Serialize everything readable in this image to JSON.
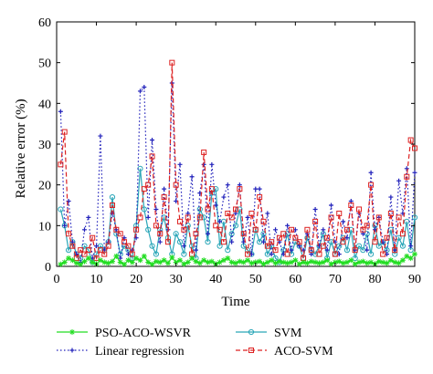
{
  "chart_data": {
    "type": "line",
    "title": "",
    "xlabel": "Time",
    "ylabel": "Relative error (%)",
    "xlim": [
      0,
      90
    ],
    "ylim": [
      0,
      60
    ],
    "xticks": [
      0,
      10,
      20,
      30,
      40,
      50,
      60,
      70,
      80,
      90
    ],
    "yticks": [
      0,
      10,
      20,
      30,
      40,
      50,
      60
    ],
    "grid": false,
    "legend_position": "bottom",
    "x": [
      1,
      2,
      3,
      4,
      5,
      6,
      7,
      8,
      9,
      10,
      11,
      12,
      13,
      14,
      15,
      16,
      17,
      18,
      19,
      20,
      21,
      22,
      23,
      24,
      25,
      26,
      27,
      28,
      29,
      30,
      31,
      32,
      33,
      34,
      35,
      36,
      37,
      38,
      39,
      40,
      41,
      42,
      43,
      44,
      45,
      46,
      47,
      48,
      49,
      50,
      51,
      52,
      53,
      54,
      55,
      56,
      57,
      58,
      59,
      60,
      61,
      62,
      63,
      64,
      65,
      66,
      67,
      68,
      69,
      70,
      71,
      72,
      73,
      74,
      75,
      76,
      77,
      78,
      79,
      80,
      81,
      82,
      83,
      84,
      85,
      86,
      87,
      88,
      89,
      90
    ],
    "series": [
      {
        "name": "PSO-ACO-WSVR",
        "color": "#22dd22",
        "values": [
          0.5,
          1,
          2,
          1.5,
          0.8,
          0.5,
          1.2,
          2,
          1,
          0.6,
          1.5,
          1,
          0.8,
          1.2,
          2.5,
          1,
          0.5,
          1.5,
          1,
          2,
          1.5,
          2.5,
          1,
          0.5,
          1.2,
          1,
          1.5,
          0.8,
          2.2,
          1,
          1.5,
          0.6,
          1,
          2,
          1.2,
          0.8,
          1.5,
          1,
          1.2,
          0.6,
          1,
          1.5,
          2,
          1,
          0.8,
          1.2,
          1,
          1.5,
          0.8,
          1,
          1.2,
          0.6,
          1,
          1.5,
          0.8,
          1.2,
          1,
          0.8,
          1,
          1.5,
          0.6,
          1,
          0.8,
          1.2,
          1,
          0.8,
          1,
          1.5,
          0.6,
          1,
          1.2,
          0.8,
          1,
          1.5,
          0.6,
          1,
          1.2,
          0.8,
          1,
          0.6,
          1.2,
          1,
          0.8,
          1.5,
          1,
          0.8,
          1.5,
          2.5,
          2,
          3
        ]
      },
      {
        "name": "SVM",
        "color": "#2aa6b8",
        "values": [
          14,
          10,
          4,
          6,
          3,
          2,
          5,
          4,
          1,
          3,
          5,
          4,
          6,
          17,
          8,
          3,
          5,
          4,
          2,
          10,
          24,
          14,
          9,
          5,
          3,
          9,
          12,
          7,
          3,
          8,
          6,
          3,
          10,
          5,
          2,
          14,
          12,
          6,
          18,
          19,
          5,
          11,
          4,
          8,
          10,
          14,
          5,
          4,
          3,
          9,
          6,
          8,
          3,
          5,
          2,
          1,
          4,
          8,
          3,
          6,
          5,
          2,
          7,
          4,
          3,
          5,
          8,
          2,
          6,
          3,
          5,
          7,
          4,
          9,
          2,
          5,
          4,
          8,
          3,
          10,
          5,
          6,
          4,
          9,
          3,
          7,
          5,
          11,
          4,
          12
        ]
      },
      {
        "name": "Linear regression",
        "color": "#2222bb",
        "values": [
          38,
          10,
          16,
          6,
          3,
          1,
          9,
          12,
          2,
          5,
          32,
          4,
          6,
          13,
          9,
          2,
          7,
          3,
          4,
          7,
          43,
          44,
          12,
          31,
          14,
          6,
          19,
          9,
          45,
          16,
          25,
          5,
          13,
          22,
          4,
          18,
          25,
          8,
          25,
          15,
          11,
          17,
          20,
          6,
          13,
          20,
          6,
          12,
          3,
          19,
          19,
          6,
          13,
          3,
          9,
          6,
          3,
          10,
          4,
          9,
          5,
          4,
          8,
          3,
          14,
          5,
          9,
          4,
          15,
          6,
          3,
          11,
          7,
          16,
          4,
          13,
          8,
          4,
          23,
          9,
          12,
          6,
          3,
          17,
          4,
          21,
          13,
          24,
          5,
          23
        ]
      },
      {
        "name": "ACO-SVM",
        "color": "#dd2222",
        "values": [
          25,
          33,
          8,
          5,
          2,
          4,
          3,
          4,
          7,
          2,
          4,
          3,
          5,
          15,
          9,
          8,
          6,
          5,
          3,
          9,
          12,
          19,
          20,
          27,
          10,
          8,
          17,
          6,
          50,
          20,
          11,
          9,
          12,
          3,
          8,
          12,
          28,
          14,
          19,
          10,
          9,
          6,
          13,
          12,
          14,
          19,
          8,
          3,
          13,
          9,
          17,
          11,
          5,
          6,
          4,
          7,
          8,
          3,
          9,
          7,
          6,
          2,
          9,
          4,
          11,
          3,
          5,
          7,
          12,
          3,
          13,
          6,
          9,
          15,
          4,
          14,
          9,
          10,
          20,
          6,
          12,
          3,
          7,
          13,
          4,
          12,
          8,
          22,
          31,
          29
        ]
      }
    ]
  },
  "legend": {
    "items": [
      {
        "label": "PSO-ACO-WSVR",
        "color": "#22dd22",
        "marker": "star"
      },
      {
        "label": "SVM",
        "color": "#2aa6b8",
        "marker": "circle"
      },
      {
        "label": "Linear regression",
        "color": "#2222bb",
        "marker": "plus"
      },
      {
        "label": "ACO-SVM",
        "color": "#dd2222",
        "marker": "square"
      }
    ]
  }
}
